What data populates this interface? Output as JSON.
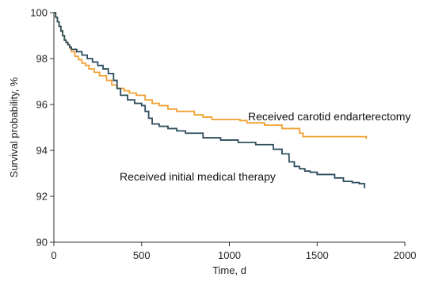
{
  "chart_data": {
    "type": "line",
    "xlabel": "Time, d",
    "ylabel": "Survival probability, %",
    "xlim": [
      0,
      2000
    ],
    "ylim": [
      90,
      100
    ],
    "x_ticks": [
      0,
      500,
      1000,
      1500,
      2000
    ],
    "y_ticks": [
      90,
      92,
      94,
      96,
      98,
      100
    ],
    "grid": false,
    "legend": "none",
    "series": [
      {
        "name": "Received carotid endarterectomy",
        "color": "#f0a030",
        "step": true,
        "x": [
          0,
          10,
          20,
          30,
          40,
          50,
          60,
          70,
          80,
          90,
          100,
          120,
          140,
          160,
          180,
          200,
          230,
          260,
          300,
          330,
          360,
          400,
          430,
          470,
          520,
          560,
          600,
          650,
          700,
          800,
          850,
          900,
          1000,
          1060,
          1100,
          1200,
          1300,
          1400,
          1420,
          1500,
          1600,
          1700,
          1780
        ],
        "y": [
          100,
          99.8,
          99.6,
          99.4,
          99.2,
          99.0,
          98.8,
          98.7,
          98.6,
          98.45,
          98.3,
          98.1,
          97.95,
          97.8,
          97.7,
          97.55,
          97.4,
          97.25,
          97.05,
          96.85,
          96.7,
          96.6,
          96.5,
          96.4,
          96.2,
          96.05,
          95.95,
          95.8,
          95.7,
          95.55,
          95.45,
          95.35,
          95.35,
          95.3,
          95.2,
          95.1,
          94.95,
          94.75,
          94.6,
          94.6,
          94.6,
          94.6,
          94.5
        ]
      },
      {
        "name": "Received initial medical therapy",
        "color": "#2e4d5c",
        "step": true,
        "x": [
          0,
          10,
          20,
          30,
          40,
          50,
          60,
          70,
          80,
          90,
          100,
          130,
          160,
          190,
          220,
          250,
          280,
          310,
          340,
          360,
          380,
          420,
          460,
          500,
          520,
          540,
          560,
          600,
          650,
          700,
          750,
          850,
          950,
          1050,
          1150,
          1250,
          1300,
          1340,
          1370,
          1400,
          1430,
          1460,
          1500,
          1600,
          1650,
          1700,
          1740,
          1770
        ],
        "y": [
          100,
          99.8,
          99.6,
          99.4,
          99.2,
          99.0,
          98.8,
          98.7,
          98.6,
          98.5,
          98.4,
          98.3,
          98.15,
          98.0,
          97.85,
          97.7,
          97.55,
          97.35,
          97.05,
          96.7,
          96.4,
          96.2,
          96.05,
          95.95,
          95.7,
          95.4,
          95.15,
          95.05,
          94.95,
          94.85,
          94.75,
          94.55,
          94.45,
          94.35,
          94.25,
          94.05,
          93.85,
          93.5,
          93.3,
          93.2,
          93.1,
          93.05,
          92.95,
          92.8,
          92.65,
          92.6,
          92.55,
          92.35
        ]
      }
    ]
  }
}
